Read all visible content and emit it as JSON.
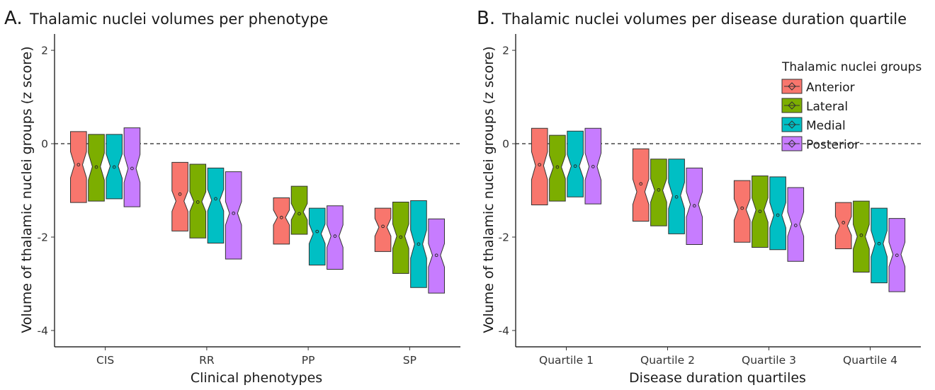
{
  "colors": {
    "Anterior": "#F8766D",
    "Lateral": "#7CAE00",
    "Medial": "#00BFC4",
    "Posterior": "#C77CFF"
  },
  "legend": {
    "title": "Thalamic nuclei groups",
    "entries": [
      "Anterior",
      "Lateral",
      "Medial",
      "Posterior"
    ]
  },
  "chart_data": [
    {
      "type": "boxplot",
      "panel_letter": "A.",
      "title": "Thalamic nuclei volumes per phenotype",
      "xlabel": "Clinical phenotypes",
      "ylabel": "Volume of thalamic nuclei groups (z score)",
      "ylim": [
        -4.35,
        2.35
      ],
      "yticks": [
        2,
        0,
        -2,
        -4
      ],
      "reference_line": 0,
      "legend": false,
      "categories": [
        "CIS",
        "RR",
        "PP",
        "SP"
      ],
      "series": [
        {
          "name": "Anterior",
          "boxes": [
            {
              "q1": -1.26,
              "q3": 0.26,
              "notch_low": -0.73,
              "notch_high": -0.17,
              "median": -0.45,
              "mean": -0.45
            },
            {
              "q1": -1.87,
              "q3": -0.4,
              "notch_low": -1.45,
              "notch_high": -1.01,
              "median": -1.23,
              "mean": -1.08
            },
            {
              "q1": -2.15,
              "q3": -1.16,
              "notch_low": -1.74,
              "notch_high": -1.42,
              "median": -1.58,
              "mean": -1.58
            },
            {
              "q1": -2.31,
              "q3": -1.38,
              "notch_low": -1.98,
              "notch_high": -1.6,
              "median": -1.79,
              "mean": -1.77
            }
          ]
        },
        {
          "name": "Lateral",
          "boxes": [
            {
              "q1": -1.23,
              "q3": 0.2,
              "notch_low": -0.78,
              "notch_high": -0.2,
              "median": -0.49,
              "mean": -0.5
            },
            {
              "q1": -2.02,
              "q3": -0.44,
              "notch_low": -1.45,
              "notch_high": -1.03,
              "median": -1.24,
              "mean": -1.25
            },
            {
              "q1": -1.94,
              "q3": -0.91,
              "notch_low": -1.63,
              "notch_high": -1.28,
              "median": -1.46,
              "mean": -1.5
            },
            {
              "q1": -2.78,
              "q3": -1.25,
              "notch_low": -2.24,
              "notch_high": -1.72,
              "median": -1.98,
              "mean": -2.0
            }
          ]
        },
        {
          "name": "Medial",
          "boxes": [
            {
              "q1": -1.18,
              "q3": 0.2,
              "notch_low": -0.74,
              "notch_high": -0.22,
              "median": -0.48,
              "mean": -0.5
            },
            {
              "q1": -2.13,
              "q3": -0.52,
              "notch_low": -1.44,
              "notch_high": -0.98,
              "median": -1.21,
              "mean": -1.18
            },
            {
              "q1": -2.6,
              "q3": -1.38,
              "notch_low": -2.14,
              "notch_high": -1.72,
              "median": -1.93,
              "mean": -1.88
            },
            {
              "q1": -3.08,
              "q3": -1.22,
              "notch_low": -2.45,
              "notch_high": -1.85,
              "median": -2.15,
              "mean": -2.15
            }
          ]
        },
        {
          "name": "Posterior",
          "boxes": [
            {
              "q1": -1.35,
              "q3": 0.34,
              "notch_low": -0.83,
              "notch_high": -0.23,
              "median": -0.53,
              "mean": -0.53
            },
            {
              "q1": -2.47,
              "q3": -0.6,
              "notch_low": -1.74,
              "notch_high": -1.24,
              "median": -1.49,
              "mean": -1.49
            },
            {
              "q1": -2.69,
              "q3": -1.33,
              "notch_low": -2.22,
              "notch_high": -1.74,
              "median": -1.98,
              "mean": -1.98
            },
            {
              "q1": -3.2,
              "q3": -1.61,
              "notch_low": -2.64,
              "notch_high": -2.14,
              "median": -2.39,
              "mean": -2.39
            }
          ]
        }
      ]
    },
    {
      "type": "boxplot",
      "panel_letter": "B.",
      "title": "Thalamic nuclei volumes per disease duration quartile",
      "xlabel": "Disease duration quartiles",
      "ylabel": "Volume of thalamic nuclei groups (z score)",
      "ylim": [
        -4.35,
        2.35
      ],
      "yticks": [
        2,
        0,
        -2,
        -4
      ],
      "reference_line": 0,
      "legend": "top-right",
      "categories": [
        "Quartile 1",
        "Quartile 2",
        "Quartile 3",
        "Quartile 4"
      ],
      "series": [
        {
          "name": "Anterior",
          "boxes": [
            {
              "q1": -1.31,
              "q3": 0.33,
              "notch_low": -0.77,
              "notch_high": -0.17,
              "median": -0.47,
              "mean": -0.45
            },
            {
              "q1": -1.66,
              "q3": -0.11,
              "notch_low": -1.3,
              "notch_high": -0.76,
              "median": -1.03,
              "mean": -0.86
            },
            {
              "q1": -2.11,
              "q3": -0.79,
              "notch_low": -1.64,
              "notch_high": -1.18,
              "median": -1.41,
              "mean": -1.38
            },
            {
              "q1": -2.25,
              "q3": -1.26,
              "notch_low": -1.96,
              "notch_high": -1.56,
              "median": -1.76,
              "mean": -1.69
            }
          ]
        },
        {
          "name": "Lateral",
          "boxes": [
            {
              "q1": -1.23,
              "q3": 0.18,
              "notch_low": -0.75,
              "notch_high": -0.25,
              "median": -0.5,
              "mean": -0.5
            },
            {
              "q1": -1.76,
              "q3": -0.33,
              "notch_low": -1.25,
              "notch_high": -0.75,
              "median": -1.0,
              "mean": -0.99
            },
            {
              "q1": -2.22,
              "q3": -0.69,
              "notch_low": -1.68,
              "notch_high": -1.16,
              "median": -1.42,
              "mean": -1.45
            },
            {
              "q1": -2.75,
              "q3": -1.23,
              "notch_low": -2.25,
              "notch_high": -1.73,
              "median": -1.99,
              "mean": -1.96
            }
          ]
        },
        {
          "name": "Medial",
          "boxes": [
            {
              "q1": -1.14,
              "q3": 0.27,
              "notch_low": -0.73,
              "notch_high": -0.23,
              "median": -0.48,
              "mean": -0.48
            },
            {
              "q1": -1.93,
              "q3": -0.33,
              "notch_low": -1.39,
              "notch_high": -0.83,
              "median": -1.11,
              "mean": -1.14
            },
            {
              "q1": -2.27,
              "q3": -0.71,
              "notch_low": -1.8,
              "notch_high": -1.26,
              "median": -1.53,
              "mean": -1.53
            },
            {
              "q1": -2.98,
              "q3": -1.38,
              "notch_low": -2.42,
              "notch_high": -1.86,
              "median": -2.14,
              "mean": -2.14
            }
          ]
        },
        {
          "name": "Posterior",
          "boxes": [
            {
              "q1": -1.29,
              "q3": 0.33,
              "notch_low": -0.78,
              "notch_high": -0.2,
              "median": -0.49,
              "mean": -0.49
            },
            {
              "q1": -2.16,
              "q3": -0.52,
              "notch_low": -1.57,
              "notch_high": -1.03,
              "median": -1.3,
              "mean": -1.33
            },
            {
              "q1": -2.52,
              "q3": -0.94,
              "notch_low": -1.98,
              "notch_high": -1.46,
              "median": -1.72,
              "mean": -1.75
            },
            {
              "q1": -3.17,
              "q3": -1.6,
              "notch_low": -2.63,
              "notch_high": -2.11,
              "median": -2.37,
              "mean": -2.39
            }
          ]
        }
      ]
    }
  ]
}
